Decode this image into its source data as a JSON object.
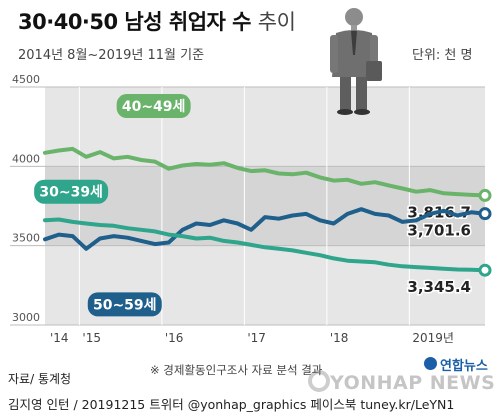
{
  "header": {
    "title_bold": "30·40·50 남성 취업자 수",
    "title_light": "추이",
    "subtitle": "2014년 8월~2019년 11월 기준",
    "unit": "단위: 천 명"
  },
  "footer": {
    "note": "※ 경제활동인구조사 자료 분석 결과",
    "source": "자료/ 통계청",
    "credit": "김지영 인턴 / 20191215 트위터 @yonhap_graphics 페이스북 tuney.kr/LeYN1",
    "logo": "연합뉴스",
    "watermark": "YONHAP NEWS"
  },
  "colors": {
    "series_40": "#6ab36a",
    "series_30": "#2fa58c",
    "series_50": "#1f5f8b",
    "band_dark": "#d9d9d9",
    "band_light": "#e9e9e9"
  },
  "chart_data": {
    "type": "line",
    "title": "30·40·50 남성 취업자 수 추이",
    "ylim": [
      3000,
      4500
    ],
    "yticks": [
      3000,
      3500,
      4000,
      4500
    ],
    "xlim": [
      2014.583,
      2019.917
    ],
    "xticks": [
      {
        "label": "'14",
        "year": 2014
      },
      {
        "label": "'15",
        "year": 2015
      },
      {
        "label": "'16",
        "year": 2016
      },
      {
        "label": "'17",
        "year": 2017
      },
      {
        "label": "'18",
        "year": 2018
      },
      {
        "label": "2019년",
        "year": 2019
      }
    ],
    "series": [
      {
        "name": "40~49세",
        "color": "#6ab36a",
        "end_label": "3,816.7",
        "points": [
          [
            2014.583,
            4085
          ],
          [
            2014.75,
            4100
          ],
          [
            2014.917,
            4110
          ],
          [
            2015.083,
            4060
          ],
          [
            2015.25,
            4090
          ],
          [
            2015.417,
            4050
          ],
          [
            2015.583,
            4060
          ],
          [
            2015.75,
            4040
          ],
          [
            2015.917,
            4030
          ],
          [
            2016.083,
            3985
          ],
          [
            2016.25,
            4005
          ],
          [
            2016.417,
            4015
          ],
          [
            2016.583,
            4010
          ],
          [
            2016.75,
            4020
          ],
          [
            2016.917,
            3990
          ],
          [
            2017.083,
            3970
          ],
          [
            2017.25,
            3975
          ],
          [
            2017.417,
            3955
          ],
          [
            2017.583,
            3950
          ],
          [
            2017.75,
            3960
          ],
          [
            2017.917,
            3930
          ],
          [
            2018.083,
            3910
          ],
          [
            2018.25,
            3915
          ],
          [
            2018.417,
            3890
          ],
          [
            2018.583,
            3900
          ],
          [
            2018.75,
            3880
          ],
          [
            2018.917,
            3860
          ],
          [
            2019.083,
            3840
          ],
          [
            2019.25,
            3850
          ],
          [
            2019.417,
            3830
          ],
          [
            2019.583,
            3825
          ],
          [
            2019.75,
            3820
          ],
          [
            2019.917,
            3816.7
          ]
        ]
      },
      {
        "name": "50~59세",
        "color": "#1f5f8b",
        "end_label": "3,701.6",
        "points": [
          [
            2014.583,
            3540
          ],
          [
            2014.75,
            3570
          ],
          [
            2014.917,
            3560
          ],
          [
            2015.083,
            3480
          ],
          [
            2015.25,
            3545
          ],
          [
            2015.417,
            3560
          ],
          [
            2015.583,
            3550
          ],
          [
            2015.75,
            3530
          ],
          [
            2015.917,
            3510
          ],
          [
            2016.083,
            3520
          ],
          [
            2016.25,
            3600
          ],
          [
            2016.417,
            3640
          ],
          [
            2016.583,
            3630
          ],
          [
            2016.75,
            3660
          ],
          [
            2016.917,
            3640
          ],
          [
            2017.083,
            3600
          ],
          [
            2017.25,
            3680
          ],
          [
            2017.417,
            3670
          ],
          [
            2017.583,
            3690
          ],
          [
            2017.75,
            3700
          ],
          [
            2017.917,
            3660
          ],
          [
            2018.083,
            3640
          ],
          [
            2018.25,
            3700
          ],
          [
            2018.417,
            3730
          ],
          [
            2018.583,
            3700
          ],
          [
            2018.75,
            3690
          ],
          [
            2018.917,
            3650
          ],
          [
            2019.083,
            3660
          ],
          [
            2019.25,
            3700
          ],
          [
            2019.417,
            3720
          ],
          [
            2019.583,
            3690
          ],
          [
            2019.75,
            3710
          ],
          [
            2019.917,
            3701.6
          ]
        ]
      },
      {
        "name": "30~39세",
        "color": "#2fa58c",
        "end_label": "3,345.4",
        "points": [
          [
            2014.583,
            3660
          ],
          [
            2014.75,
            3665
          ],
          [
            2014.917,
            3650
          ],
          [
            2015.083,
            3640
          ],
          [
            2015.25,
            3630
          ],
          [
            2015.417,
            3625
          ],
          [
            2015.583,
            3610
          ],
          [
            2015.75,
            3600
          ],
          [
            2015.917,
            3590
          ],
          [
            2016.083,
            3570
          ],
          [
            2016.25,
            3560
          ],
          [
            2016.417,
            3545
          ],
          [
            2016.583,
            3550
          ],
          [
            2016.75,
            3530
          ],
          [
            2016.917,
            3520
          ],
          [
            2017.083,
            3505
          ],
          [
            2017.25,
            3490
          ],
          [
            2017.417,
            3480
          ],
          [
            2017.583,
            3470
          ],
          [
            2017.75,
            3455
          ],
          [
            2017.917,
            3440
          ],
          [
            2018.083,
            3420
          ],
          [
            2018.25,
            3405
          ],
          [
            2018.417,
            3400
          ],
          [
            2018.583,
            3395
          ],
          [
            2018.75,
            3380
          ],
          [
            2018.917,
            3370
          ],
          [
            2019.083,
            3365
          ],
          [
            2019.25,
            3360
          ],
          [
            2019.417,
            3355
          ],
          [
            2019.583,
            3350
          ],
          [
            2019.75,
            3348
          ],
          [
            2019.917,
            3345.4
          ]
        ]
      }
    ]
  }
}
